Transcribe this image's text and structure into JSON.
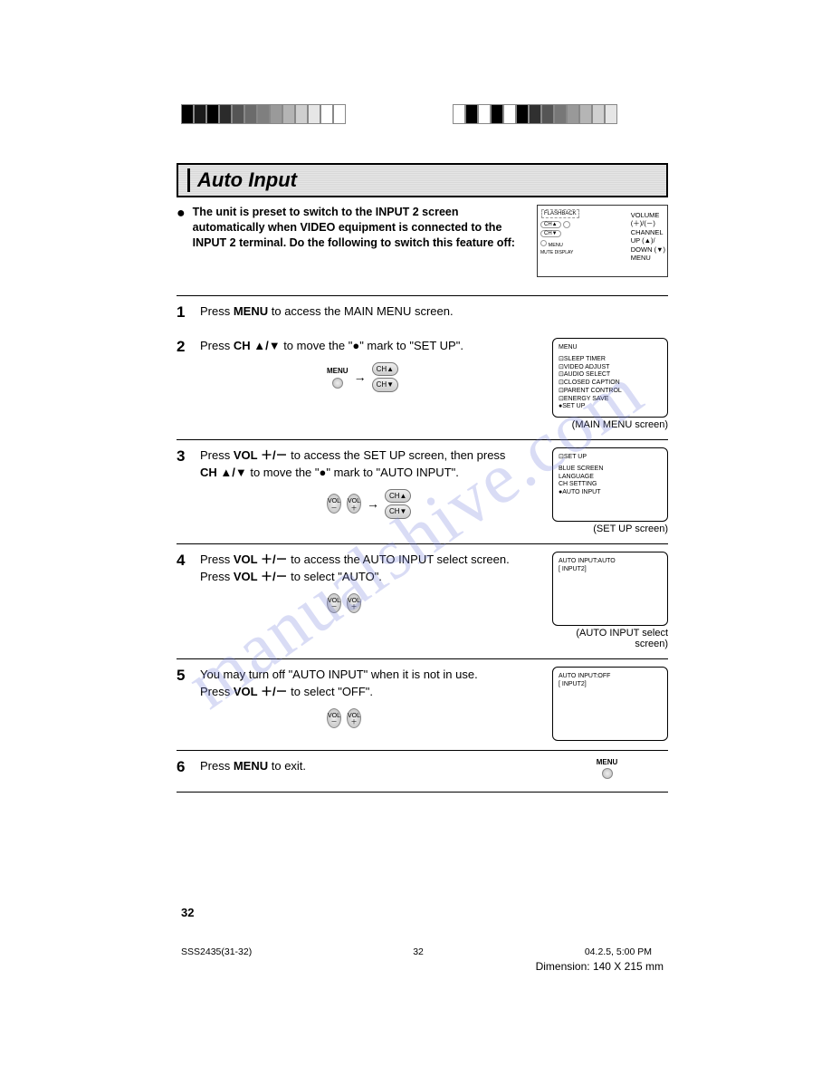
{
  "watermark_text": "manualshive.com",
  "colorbar_left": [
    "#000000",
    "#1a1a1a",
    "#000000",
    "#2b2b2b",
    "#555555",
    "#6b6b6b",
    "#7f7f7f",
    "#9a9a9a",
    "#b4b4b4",
    "#cfcfcf",
    "#e6e6e6",
    "#ffffff",
    "#ffffff"
  ],
  "colorbar_right": [
    "#ffffff",
    "#000000",
    "#ffffff",
    "#000000",
    "#ffffff",
    "#000000",
    "#303030",
    "#555555",
    "#777777",
    "#999999",
    "#b5b5b5",
    "#d0d0d0",
    "#e6e6e6"
  ],
  "section_title": "Auto Input",
  "intro_bullet": "●",
  "intro_text": "The unit is preset to switch to the INPUT 2 screen automatically when VIDEO equipment is connected to the INPUT 2 terminal. Do the following to switch this feature off:",
  "remote_labels": [
    "VOLUME",
    "(＋)/(－)",
    "CHANNEL",
    "UP (▲)/",
    "DOWN (▼)",
    "MENU"
  ],
  "remote_small_labels": [
    "FLASHBACK",
    "MENU",
    "MUTE",
    "DISPLAY"
  ],
  "steps": [
    {
      "num": "1",
      "lines": [
        [
          "Press ",
          "MENU",
          " to access the MAIN MENU screen."
        ]
      ],
      "compact": true
    },
    {
      "num": "2",
      "lines": [
        [
          "Press ",
          "CH ▲/▼",
          " to move the \"●\" mark to \"SET UP\"."
        ]
      ],
      "illus": {
        "menu_label": "MENU",
        "pills": [
          "CH▲",
          "CH▼"
        ],
        "use_menu_dot": true
      },
      "screen": {
        "title": "MENU",
        "items": [
          "⊡SLEEP TIMER",
          "⊡VIDEO ADJUST",
          "⊡AUDIO SELECT",
          "⊡CLOSED CAPTION",
          "⊡PARENT CONTROL",
          "⊡ENERGY SAVE",
          "●SET UP"
        ],
        "caption": "(MAIN MENU screen)"
      }
    },
    {
      "num": "3",
      "lines": [
        [
          "Press ",
          "VOL ＋/－",
          " to access the SET UP screen, then press"
        ],
        [
          "",
          "CH ▲/▼",
          " to move the \"●\" mark to \"AUTO INPUT\"."
        ]
      ],
      "illus": {
        "vols": [
          "VOL\n－",
          "VOL\n＋"
        ],
        "pills": [
          "CH▲",
          "CH▼"
        ]
      },
      "screen": {
        "title": "⊡SET UP",
        "items": [
          "BLUE SCREEN",
          "LANGUAGE",
          "CH SETTING",
          "●AUTO INPUT"
        ],
        "caption": "(SET UP screen)"
      }
    },
    {
      "num": "4",
      "lines": [
        [
          "Press ",
          "VOL ＋/－",
          " to access the AUTO INPUT select screen."
        ],
        [
          "Press ",
          "VOL ＋/－",
          " to select \"AUTO\"."
        ]
      ],
      "illus": {
        "vols": [
          "VOL\n－",
          "VOL\n＋"
        ]
      },
      "screen": {
        "title": "",
        "items": [
          "AUTO INPUT:AUTO",
          "[ INPUT2]"
        ],
        "caption": "(AUTO INPUT select screen)"
      }
    },
    {
      "num": "5",
      "lines": [
        [
          "You may turn off \"AUTO INPUT\" when it is not in use.",
          "",
          ""
        ],
        [
          "Press ",
          "VOL ＋/－",
          " to select \"OFF\"."
        ]
      ],
      "illus": {
        "vols": [
          "VOL\n－",
          "VOL\n＋"
        ]
      },
      "screen": {
        "title": "",
        "items": [
          "AUTO INPUT:OFF",
          "[ INPUT2]"
        ],
        "caption": ""
      }
    },
    {
      "num": "6",
      "lines": [
        [
          "Press ",
          "MENU",
          " to exit."
        ]
      ],
      "illus": {
        "menu_label": "MENU",
        "use_menu_dot": true,
        "solo": true
      }
    }
  ],
  "page_number": "32",
  "footer_left": "SSS2435(31-32)",
  "footer_center": "32",
  "footer_right": "04.2.5, 5:00 PM",
  "dimension": "Dimension: 140  X 215 mm"
}
